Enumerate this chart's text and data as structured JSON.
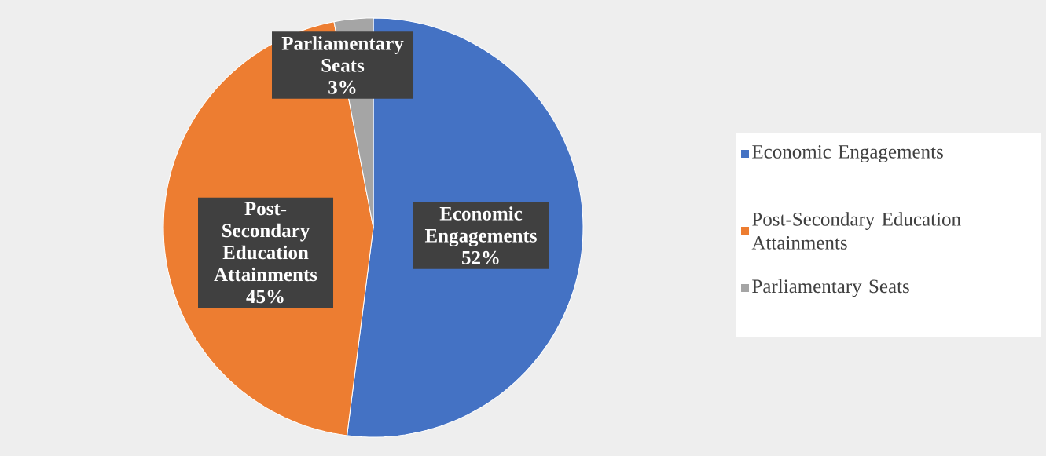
{
  "chart_data": {
    "type": "pie",
    "categories": [
      "Economic Engagements",
      "Post-Secondary Education Attainments",
      "Parliamentary Seats"
    ],
    "values": [
      52,
      45,
      3
    ],
    "colors": [
      "#4472c4",
      "#ed7d31",
      "#a5a5a5"
    ],
    "value_labels": [
      "52%",
      "45%",
      "3%"
    ],
    "legend": "right"
  }
}
